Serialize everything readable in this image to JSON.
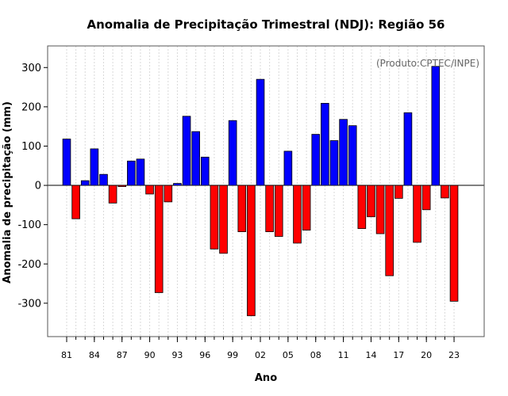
{
  "chart_data": {
    "type": "bar",
    "title": "Anomalia de Precipitação Trimestral (NDJ): Região 56",
    "xlabel": "Ano",
    "ylabel": "Anomalia de precipitação (mm)",
    "credit": "(Produto:CPTEC/INPE)",
    "ylim": [
      -385,
      355
    ],
    "yticks": [
      -300,
      -200,
      -100,
      0,
      100,
      200,
      300
    ],
    "xtick_years": [
      1981,
      1984,
      1987,
      1990,
      1993,
      1996,
      1999,
      2002,
      2005,
      2008,
      2011,
      2014,
      2017,
      2020,
      2023
    ],
    "xtick_labels": [
      "81",
      "84",
      "87",
      "90",
      "93",
      "96",
      "99",
      "02",
      "05",
      "08",
      "11",
      "14",
      "17",
      "20",
      "23"
    ],
    "years": [
      1981,
      1982,
      1983,
      1984,
      1985,
      1986,
      1987,
      1988,
      1989,
      1990,
      1991,
      1992,
      1993,
      1994,
      1995,
      1996,
      1997,
      1998,
      1999,
      2000,
      2001,
      2002,
      2003,
      2004,
      2005,
      2006,
      2007,
      2008,
      2009,
      2010,
      2011,
      2012,
      2013,
      2014,
      2015,
      2016,
      2017,
      2018,
      2019,
      2020,
      2021,
      2022,
      2023
    ],
    "values": [
      118,
      -85,
      12,
      93,
      28,
      -45,
      -3,
      62,
      67,
      -22,
      -273,
      -42,
      5,
      176,
      137,
      72,
      -162,
      -173,
      165,
      -118,
      -332,
      270,
      -118,
      -130,
      87,
      -147,
      -114,
      130,
      209,
      114,
      168,
      152,
      -110,
      -80,
      -123,
      -230,
      -33,
      185,
      -145,
      -62,
      303,
      -32,
      -295
    ],
    "grid": true,
    "colors": {
      "positive": "#0000ff",
      "negative": "#ff0000",
      "grid": "#d9d9d9",
      "zero_line": "#000000"
    }
  }
}
